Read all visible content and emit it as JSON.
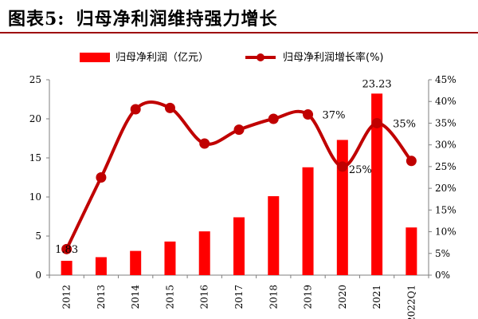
{
  "figure": {
    "label": "图表5:",
    "title": "归母净利润维持强力增长"
  },
  "colors": {
    "bar": "#ff0000",
    "line": "#c00000",
    "title_rule": "#9e0b0f"
  },
  "chart_data": {
    "type": "bar",
    "categories": [
      "2012",
      "2013",
      "2014",
      "2015",
      "2016",
      "2017",
      "2018",
      "2019",
      "2020",
      "2021",
      "2022Q1"
    ],
    "series": [
      {
        "name": "归母净利润（亿元）",
        "type": "bar",
        "axis": "left",
        "values": [
          1.83,
          2.3,
          3.1,
          4.3,
          5.6,
          7.4,
          10.1,
          13.8,
          17.3,
          23.23,
          6.1
        ]
      },
      {
        "name": "归母净利润增长率(%)",
        "type": "line",
        "axis": "right",
        "values": [
          6,
          22.5,
          38.2,
          38.5,
          30.3,
          33.5,
          36,
          37,
          25,
          35,
          26.3
        ]
      }
    ],
    "y_left": {
      "ylim": [
        0,
        25
      ],
      "ticks": [
        "0",
        "5",
        "10",
        "15",
        "20",
        "25"
      ]
    },
    "y_right": {
      "ylim": [
        0,
        45
      ],
      "ticks": [
        "0%",
        "5%",
        "10%",
        "15%",
        "20%",
        "25%",
        "30%",
        "35%",
        "40%",
        "45%"
      ]
    },
    "annotations": [
      {
        "text": "1.83",
        "series": 0,
        "index": 0
      },
      {
        "text": "23.23",
        "series": 0,
        "index": 9
      },
      {
        "text": "37%",
        "series": 1,
        "index": 7
      },
      {
        "text": "25%",
        "series": 1,
        "index": 8
      },
      {
        "text": "35%",
        "series": 1,
        "index": 9
      }
    ],
    "legend_position": "top",
    "grid": false
  }
}
